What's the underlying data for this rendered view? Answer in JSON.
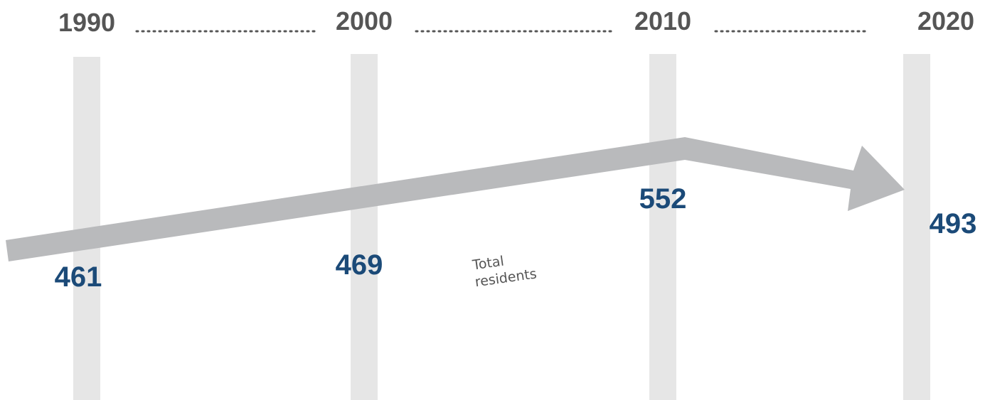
{
  "timeline": {
    "years": [
      "1990",
      "2000",
      "2010",
      "2020"
    ],
    "values": [
      461,
      469,
      552,
      493
    ]
  },
  "label": {
    "lines": [
      "Total",
      "residents"
    ]
  }
}
